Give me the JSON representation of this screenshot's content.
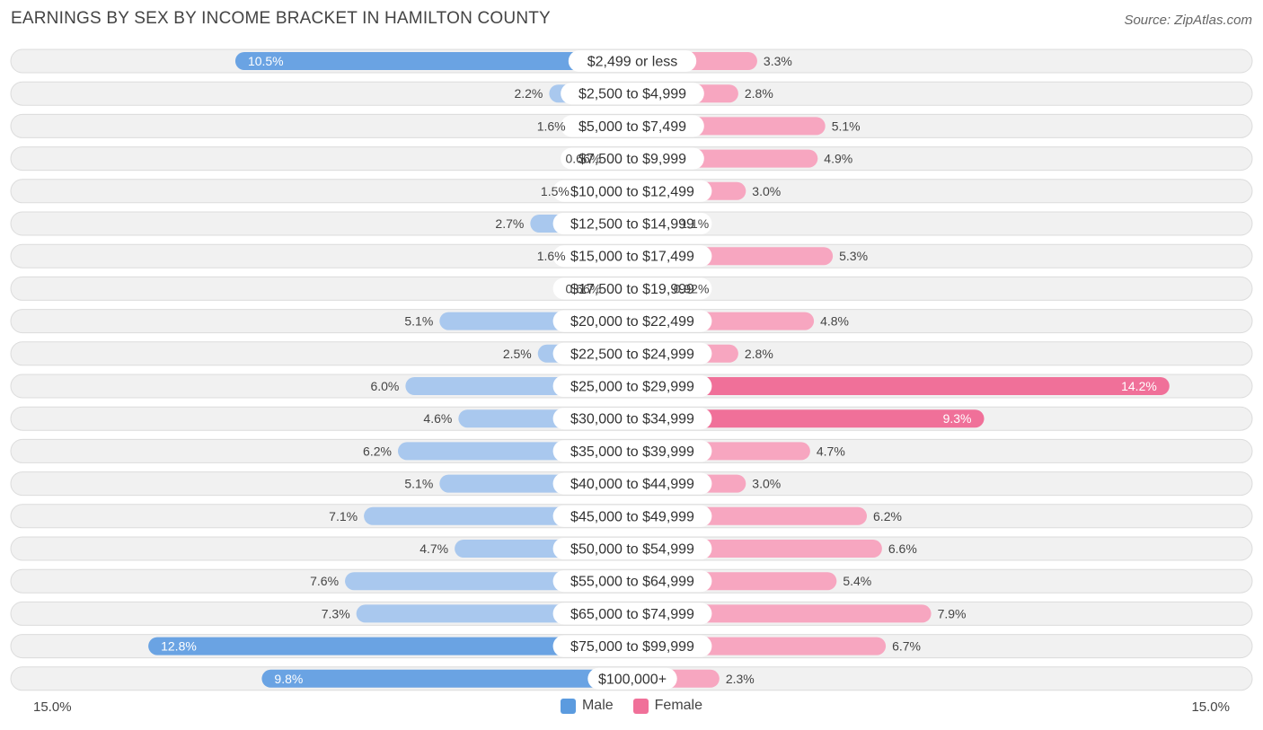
{
  "title": "EARNINGS BY SEX BY INCOME BRACKET IN HAMILTON COUNTY",
  "source": "Source: ZipAtlas.com",
  "axis": {
    "left_label": "15.0%",
    "right_label": "15.0%"
  },
  "legend": [
    {
      "name": "Male",
      "color": "#5b9bdf"
    },
    {
      "name": "Female",
      "color": "#f07099"
    }
  ],
  "colors": {
    "male_strong": "#6aa3e3",
    "male_light": "#a9c8ee",
    "female_strong": "#f07099",
    "female_light": "#f7a6c0"
  },
  "chart_data": {
    "type": "bar",
    "orientation": "horizontal-diverging",
    "title": "EARNINGS BY SEX BY INCOME BRACKET IN HAMILTON COUNTY",
    "xlim": [
      -15.0,
      15.0
    ],
    "unit": "%",
    "categories": [
      "$2,499 or less",
      "$2,500 to $4,999",
      "$5,000 to $7,499",
      "$7,500 to $9,999",
      "$10,000 to $12,499",
      "$12,500 to $14,999",
      "$15,000 to $17,499",
      "$17,500 to $19,999",
      "$20,000 to $22,499",
      "$22,500 to $24,999",
      "$25,000 to $29,999",
      "$30,000 to $34,999",
      "$35,000 to $39,999",
      "$40,000 to $44,999",
      "$45,000 to $49,999",
      "$50,000 to $54,999",
      "$55,000 to $64,999",
      "$65,000 to $74,999",
      "$75,000 to $99,999",
      "$100,000+"
    ],
    "series": [
      {
        "name": "Male",
        "values": [
          10.5,
          2.2,
          1.6,
          0.66,
          1.5,
          2.7,
          1.6,
          0.66,
          5.1,
          2.5,
          6.0,
          4.6,
          6.2,
          5.1,
          7.1,
          4.7,
          7.6,
          7.3,
          12.8,
          9.8
        ],
        "labels": [
          "10.5%",
          "2.2%",
          "1.6%",
          "0.66%",
          "1.5%",
          "2.7%",
          "1.6%",
          "0.66%",
          "5.1%",
          "2.5%",
          "6.0%",
          "4.6%",
          "6.2%",
          "5.1%",
          "7.1%",
          "4.7%",
          "7.6%",
          "7.3%",
          "12.8%",
          "9.8%"
        ]
      },
      {
        "name": "Female",
        "values": [
          3.3,
          2.8,
          5.1,
          4.9,
          3.0,
          1.1,
          5.3,
          0.92,
          4.8,
          2.8,
          14.2,
          9.3,
          4.7,
          3.0,
          6.2,
          6.6,
          5.4,
          7.9,
          6.7,
          2.3
        ],
        "labels": [
          "3.3%",
          "2.8%",
          "5.1%",
          "4.9%",
          "3.0%",
          "1.1%",
          "5.3%",
          "0.92%",
          "4.8%",
          "2.8%",
          "14.2%",
          "9.3%",
          "4.7%",
          "3.0%",
          "6.2%",
          "6.6%",
          "5.4%",
          "7.9%",
          "6.7%",
          "2.3%"
        ]
      }
    ]
  }
}
